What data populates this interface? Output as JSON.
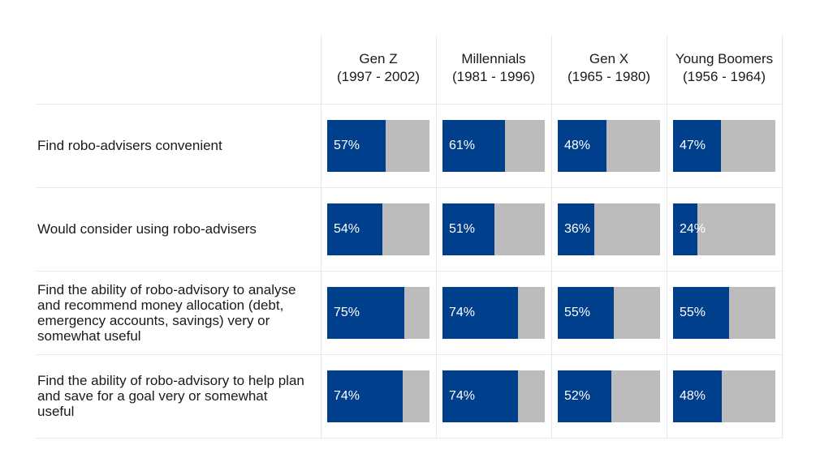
{
  "colors": {
    "accent": "#003f8c",
    "remainder": "#bcbcbc"
  },
  "chart_data": {
    "type": "bar",
    "stacked": true,
    "orientation": "horizontal",
    "columns": [
      {
        "name": "Gen Z",
        "range": "(1997 - 2002)"
      },
      {
        "name": "Millennials",
        "range": "(1981 - 1996)"
      },
      {
        "name": "Gen X",
        "range": "(1965 - 1980)"
      },
      {
        "name": "Young Boomers",
        "range": "(1956 - 1964)"
      }
    ],
    "rows": [
      {
        "label": "Find robo-advisers convenient",
        "values": [
          57,
          61,
          48,
          47
        ],
        "labels": [
          "57%",
          "61%",
          "48%",
          "47%"
        ]
      },
      {
        "label": "Would consider using robo-advisers",
        "values": [
          54,
          51,
          36,
          24
        ],
        "labels": [
          "54%",
          "51%",
          "36%",
          "24%"
        ]
      },
      {
        "label": "Find the ability of robo-advisory to analyse and recommend money allocation (debt, emergency accounts, savings) very or somewhat useful",
        "values": [
          75,
          74,
          55,
          55
        ],
        "labels": [
          "75%",
          "74%",
          "55%",
          "55%"
        ]
      },
      {
        "label": "Find the ability of robo-advisory to help plan and save for a goal very or somewhat useful",
        "values": [
          74,
          74,
          52,
          48
        ],
        "labels": [
          "74%",
          "74%",
          "52%",
          "48%"
        ]
      }
    ],
    "ylim": [
      0,
      100
    ]
  }
}
